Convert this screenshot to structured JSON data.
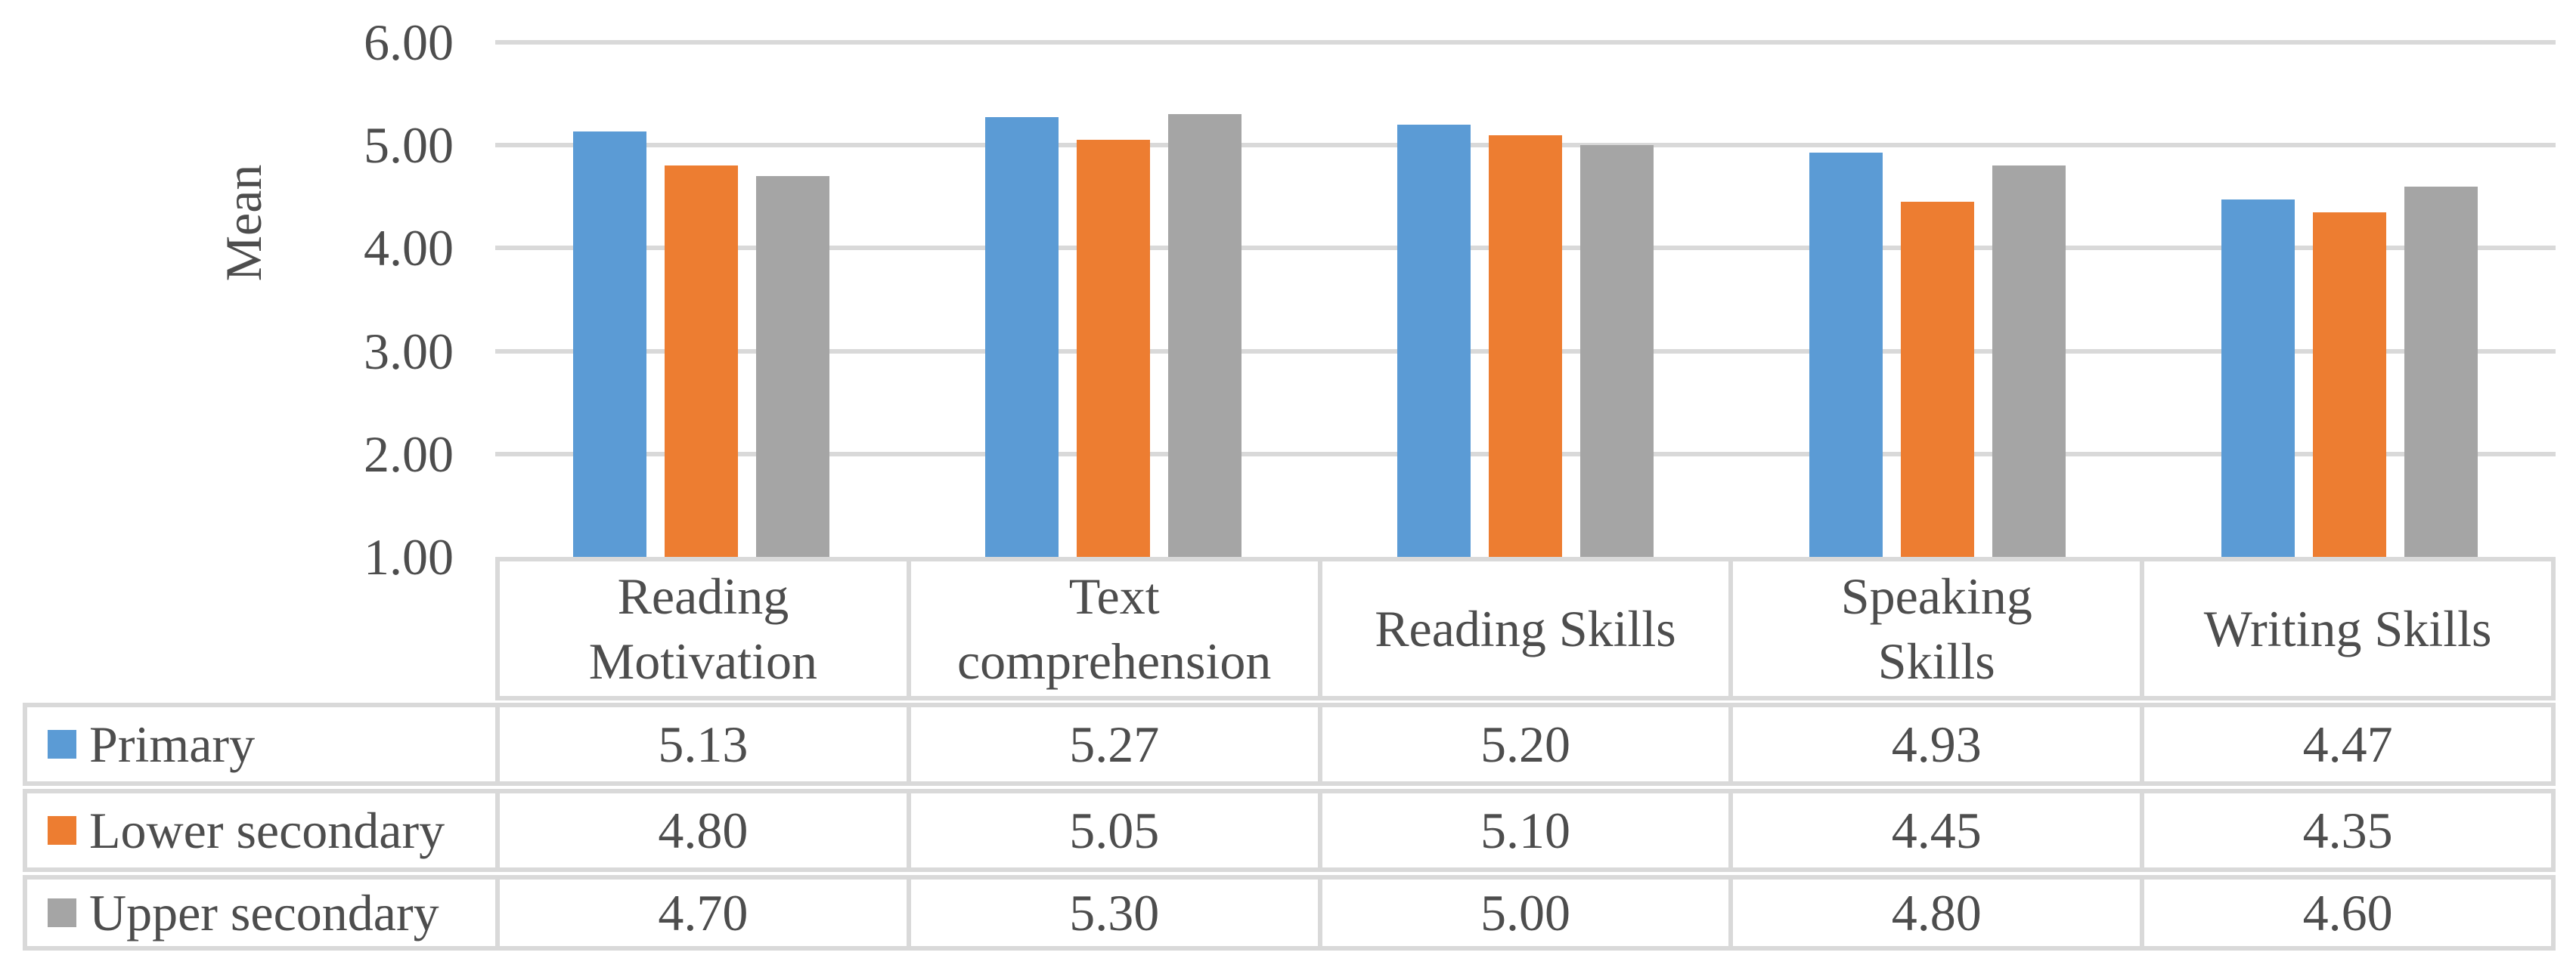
{
  "chart_data": {
    "type": "bar",
    "title": "",
    "ylabel": "Mean",
    "xlabel": "",
    "categories": [
      "Reading Motivation",
      "Text comprehension",
      "Reading Skills",
      "Speaking Skills",
      "Writing Skills"
    ],
    "series": [
      {
        "name": "Primary",
        "color": "#5B9BD5",
        "values": [
          5.13,
          5.27,
          5.2,
          4.93,
          4.47
        ]
      },
      {
        "name": "Lower secondary",
        "color": "#ED7D31",
        "values": [
          4.8,
          5.05,
          5.1,
          4.45,
          4.35
        ]
      },
      {
        "name": "Upper secondary",
        "color": "#A5A5A5",
        "values": [
          4.7,
          5.3,
          5.0,
          4.8,
          4.6
        ]
      }
    ],
    "ylim": [
      1.0,
      6.0
    ],
    "y_ticks": [
      "6.00",
      "5.00",
      "4.00",
      "3.00",
      "2.00",
      "1.00"
    ],
    "grid": true,
    "legend_position": "data-table-row-headers"
  },
  "table": {
    "header_lines": [
      [
        "Reading",
        "Motivation"
      ],
      [
        "Text",
        "comprehension"
      ],
      [
        "Reading Skills"
      ],
      [
        "Speaking",
        "Skills"
      ],
      [
        "Writing Skills"
      ]
    ],
    "rows": [
      {
        "label": "Primary",
        "cells": [
          "5.13",
          "5.27",
          "5.20",
          "4.93",
          "4.47"
        ]
      },
      {
        "label": "Lower secondary",
        "cells": [
          "4.80",
          "5.05",
          "5.10",
          "4.45",
          "4.35"
        ]
      },
      {
        "label": "Upper secondary",
        "cells": [
          "4.70",
          "5.30",
          "5.00",
          "4.80",
          "4.60"
        ]
      }
    ]
  },
  "colors": {
    "series_blue": "#5B9BD5",
    "series_orange": "#ED7D31",
    "series_gray": "#A5A5A5",
    "gridline": "#D9D9D9",
    "table_border": "#D9D9D9",
    "text": "#4D4D4D"
  }
}
